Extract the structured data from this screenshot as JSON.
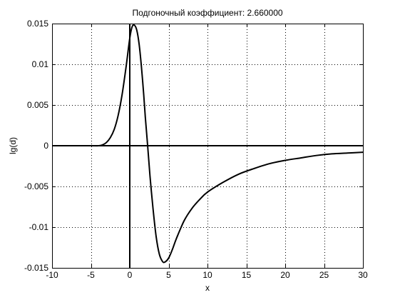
{
  "chart_data": {
    "type": "line",
    "title": "Подгоночный коэффициент: 2.660000",
    "xlabel": "x",
    "ylabel": "lg(d)",
    "xlim": [
      -10,
      30
    ],
    "ylim": [
      -0.015,
      0.015
    ],
    "xticks": [
      -10,
      -5,
      0,
      5,
      10,
      15,
      20,
      25,
      30
    ],
    "yticks": [
      -0.015,
      -0.01,
      -0.005,
      0,
      0.005,
      0.01,
      0.015
    ],
    "xtick_labels": [
      "-10",
      "-5",
      "0",
      "5",
      "10",
      "15",
      "20",
      "25",
      "30"
    ],
    "ytick_labels": [
      "-0.015",
      "-0.01",
      "-0.005",
      "0",
      "0.005",
      "0.01",
      "0.015"
    ],
    "grid": true,
    "reference_lines": {
      "x": 0,
      "y": 0
    },
    "series": [
      {
        "color": "#000000",
        "x": [
          -10,
          -5,
          -4,
          -3.5,
          -3,
          -2.5,
          -2,
          -1.5,
          -1,
          -0.5,
          0,
          0.3,
          0.6,
          0.9,
          1.2,
          1.5,
          1.8,
          2,
          2.3,
          2.6,
          3,
          3.4,
          3.8,
          4.2,
          4.5,
          5,
          5.5,
          6,
          7,
          8,
          9,
          10,
          12,
          14,
          16,
          18,
          20,
          22,
          24,
          26,
          28,
          30
        ],
        "y": [
          0,
          0,
          0,
          0.0001,
          0.0004,
          0.001,
          0.002,
          0.0037,
          0.0062,
          0.0095,
          0.0132,
          0.0146,
          0.0148,
          0.0142,
          0.0125,
          0.0097,
          0.0062,
          0.0035,
          0.0,
          -0.0037,
          -0.0078,
          -0.0112,
          -0.0133,
          -0.0142,
          -0.0143,
          -0.0138,
          -0.0127,
          -0.0114,
          -0.0092,
          -0.0077,
          -0.0066,
          -0.0057,
          -0.0045,
          -0.0035,
          -0.0028,
          -0.0022,
          -0.0018,
          -0.0015,
          -0.0012,
          -0.001,
          -0.0009,
          -0.0008
        ]
      }
    ]
  }
}
